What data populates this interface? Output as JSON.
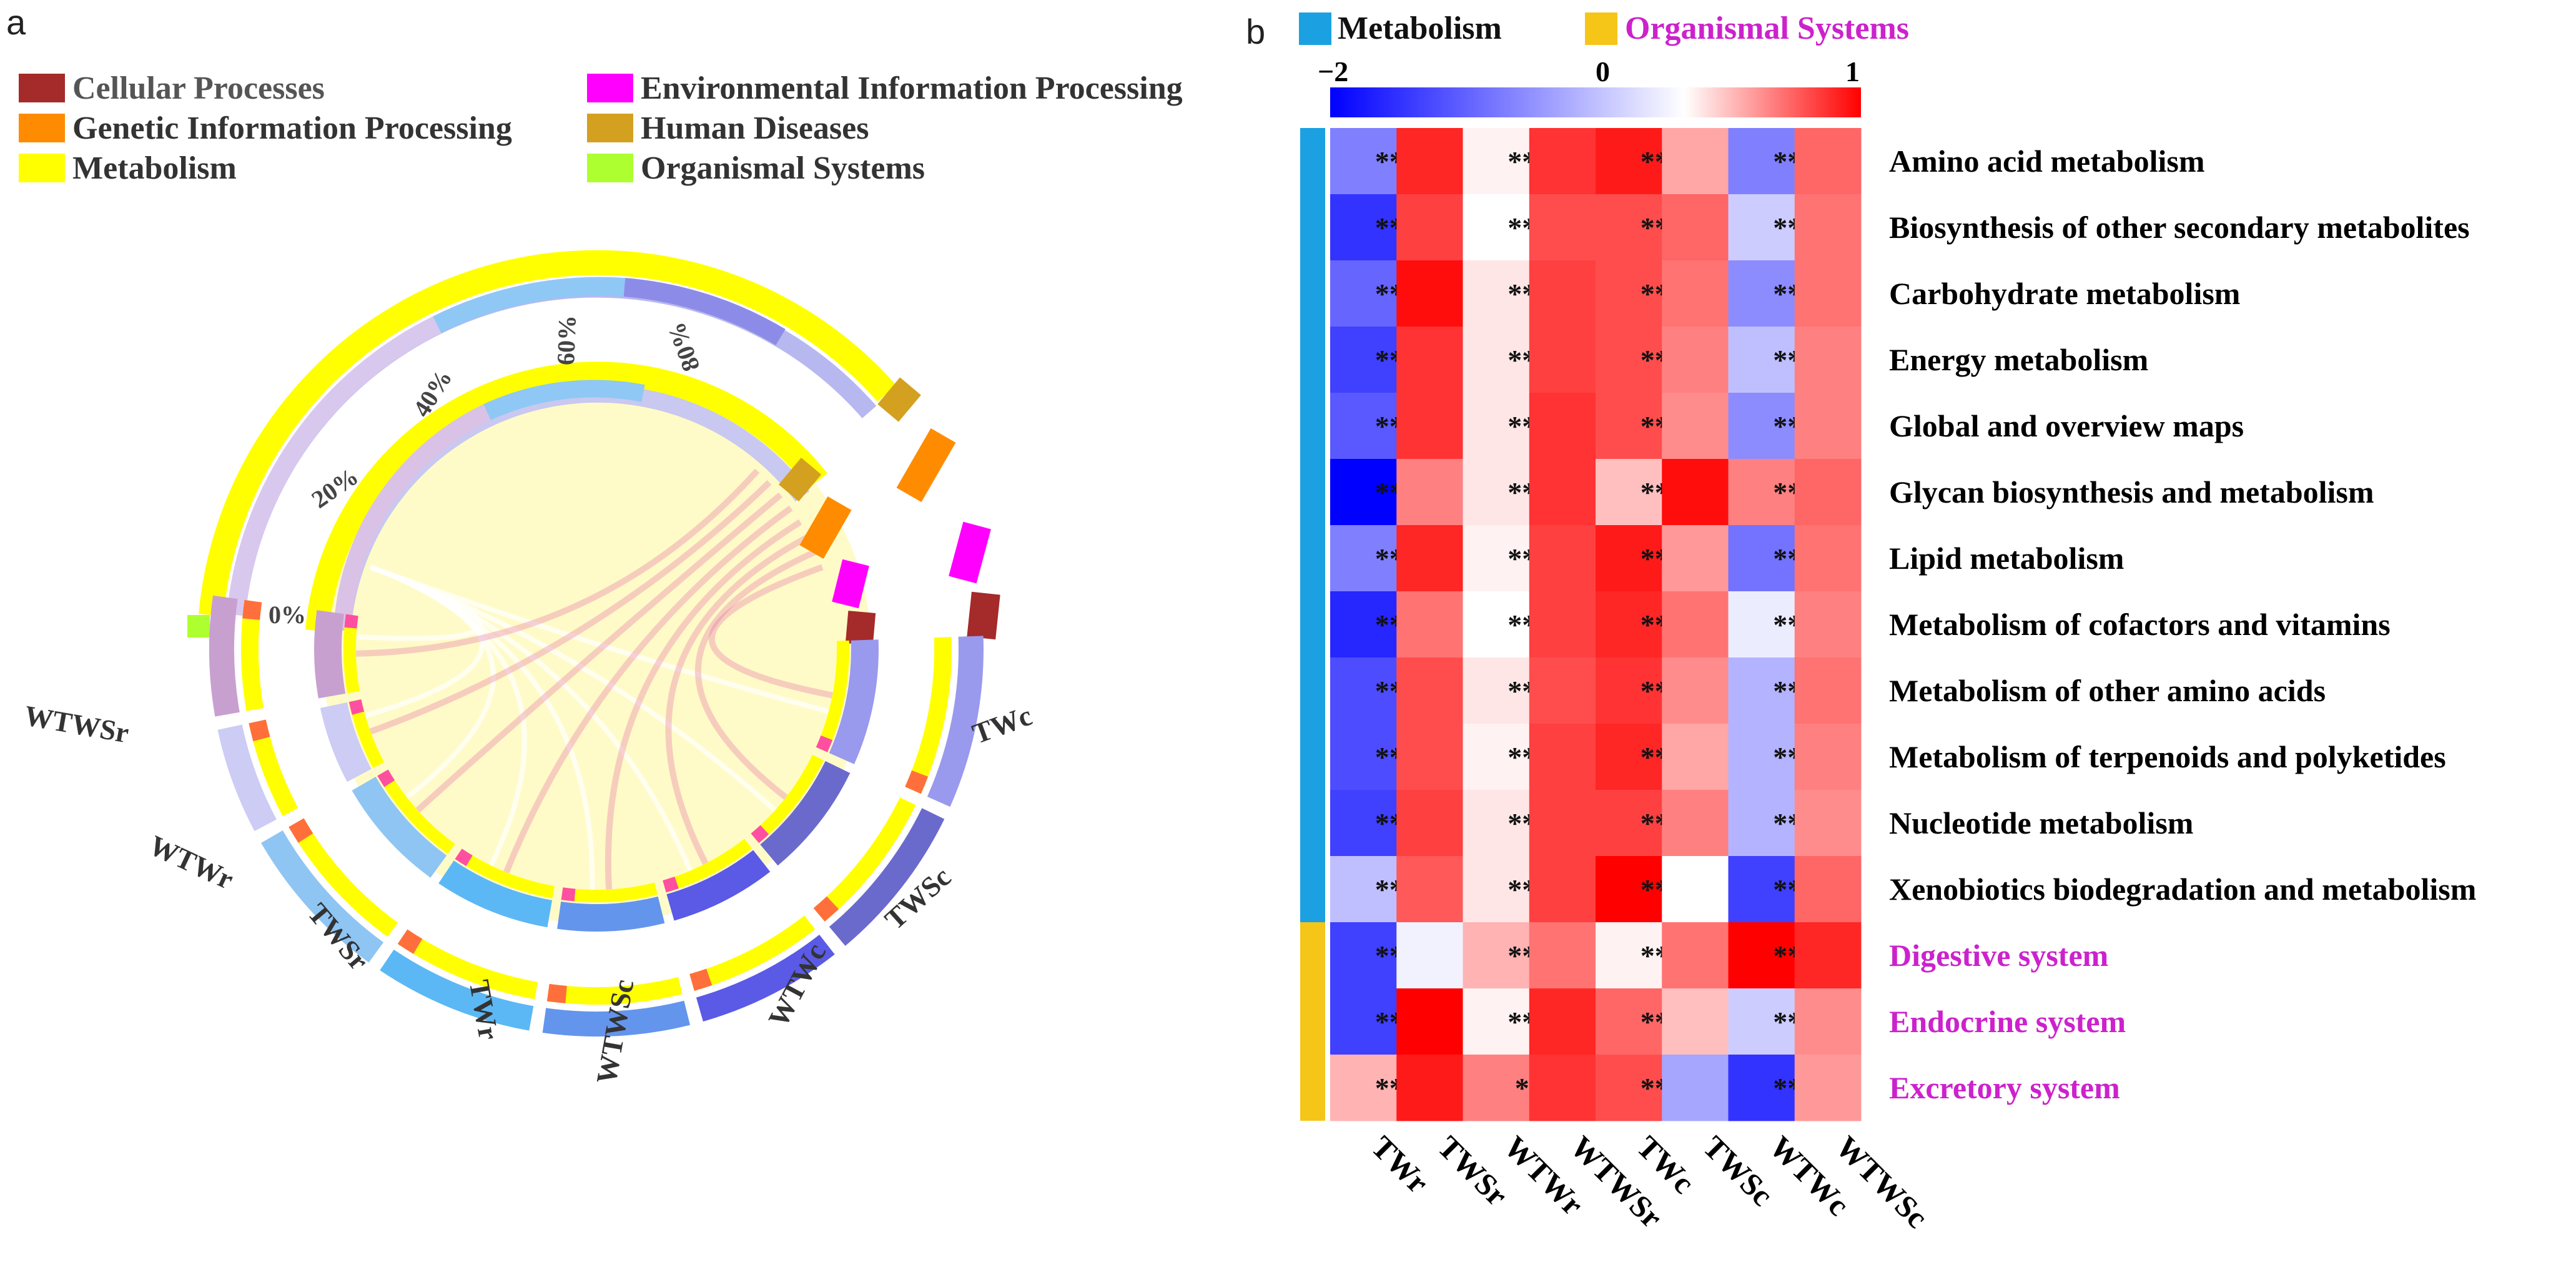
{
  "panel_a": {
    "label": "a",
    "legend": [
      {
        "label": "Cellular Processes",
        "color": "#a52a2a"
      },
      {
        "label": "Environmental Information Processing",
        "color": "#ff00ff"
      },
      {
        "label": "Genetic Information Processing",
        "color": "#ff8c00"
      },
      {
        "label": "Human Diseases",
        "color": "#d4a020"
      },
      {
        "label": "Metabolism",
        "color": "#ffff00"
      },
      {
        "label": "Organismal Systems",
        "color": "#adff2f"
      }
    ],
    "percent_labels": [
      "0%",
      "20%",
      "40%",
      "60%",
      "80%"
    ],
    "groups": [
      {
        "label": "TWc",
        "color": "#9999ee"
      },
      {
        "label": "TWSc",
        "color": "#6a6acd"
      },
      {
        "label": "WTWc",
        "color": "#5a5ae6"
      },
      {
        "label": "WTWSc",
        "color": "#6495ed"
      },
      {
        "label": "TWr",
        "color": "#5bb8f5"
      },
      {
        "label": "TWSr",
        "color": "#8ec5f3"
      },
      {
        "label": "WTWr",
        "color": "#ccccf5"
      },
      {
        "label": "WTWSr",
        "color": "#c8a0d0"
      }
    ]
  },
  "panel_b": {
    "label": "b",
    "legend": [
      {
        "label": "Metabolism",
        "color": "#1ba1e2"
      },
      {
        "label": "Organismal Systems",
        "color": "#f5c518",
        "text_color": "#cc22cc"
      }
    ],
    "colorbar": {
      "min_label": "−2",
      "mid_label": "0",
      "max_label": "1"
    }
  },
  "chart_data": {
    "type": "heatmap",
    "title": "",
    "columns": [
      "TWr",
      "TWSr",
      "WTWr",
      "WTWSr",
      "TWc",
      "TWSc",
      "WTWc",
      "WTWSc"
    ],
    "rows": [
      "Amino acid metabolism",
      "Biosynthesis of other secondary metabolites",
      "Carbohydrate metabolism",
      "Energy metabolism",
      "Global and overview maps",
      "Glycan biosynthesis and metabolism",
      "Lipid metabolism",
      "Metabolism of cofactors and vitamins",
      "Metabolism of other amino acids",
      "Metabolism of terpenoids and polyketides",
      "Nucleotide metabolism",
      "Xenobiotics biodegradation and metabolism",
      "Digestive system",
      "Endocrine system",
      "Excretory system"
    ],
    "row_groups": [
      "Metabolism",
      "Metabolism",
      "Metabolism",
      "Metabolism",
      "Metabolism",
      "Metabolism",
      "Metabolism",
      "Metabolism",
      "Metabolism",
      "Metabolism",
      "Metabolism",
      "Metabolism",
      "Organismal Systems",
      "Organismal Systems",
      "Organismal Systems"
    ],
    "values": [
      [
        -1.0,
        0.85,
        0.05,
        0.8,
        0.9,
        0.35,
        -1.0,
        0.6
      ],
      [
        -1.6,
        0.75,
        0.0,
        0.7,
        0.7,
        0.6,
        -0.4,
        0.55
      ],
      [
        -1.2,
        0.95,
        0.1,
        0.75,
        0.7,
        0.55,
        -0.9,
        0.55
      ],
      [
        -1.5,
        0.8,
        0.1,
        0.75,
        0.7,
        0.5,
        -0.5,
        0.5
      ],
      [
        -1.3,
        0.8,
        0.1,
        0.8,
        0.7,
        0.45,
        -0.9,
        0.5
      ],
      [
        -2.0,
        0.5,
        0.1,
        0.8,
        0.25,
        0.95,
        0.5,
        0.6
      ],
      [
        -1.0,
        0.85,
        0.05,
        0.75,
        0.9,
        0.4,
        -1.1,
        0.55
      ],
      [
        -1.7,
        0.55,
        0.0,
        0.75,
        0.85,
        0.55,
        -0.15,
        0.5
      ],
      [
        -1.4,
        0.7,
        0.1,
        0.7,
        0.8,
        0.45,
        -0.6,
        0.55
      ],
      [
        -1.4,
        0.7,
        0.05,
        0.75,
        0.85,
        0.35,
        -0.6,
        0.5
      ],
      [
        -1.5,
        0.75,
        0.1,
        0.75,
        0.75,
        0.5,
        -0.6,
        0.45
      ],
      [
        -0.5,
        0.65,
        0.1,
        0.75,
        1.0,
        0.0,
        -1.5,
        0.6
      ],
      [
        -1.5,
        -0.1,
        0.3,
        0.55,
        0.05,
        0.55,
        1.0,
        0.85
      ],
      [
        -1.5,
        1.0,
        0.05,
        0.85,
        0.6,
        0.25,
        -0.4,
        0.45
      ],
      [
        0.3,
        0.9,
        0.5,
        0.8,
        0.7,
        -0.7,
        -1.6,
        0.4
      ]
    ],
    "significance": [
      [
        "***",
        "",
        "***",
        "",
        "***",
        "",
        "***",
        ""
      ],
      [
        "***",
        "",
        "***",
        "",
        "***",
        "",
        "***",
        ""
      ],
      [
        "***",
        "",
        "***",
        "",
        "***",
        "",
        "***",
        ""
      ],
      [
        "***",
        "",
        "***",
        "",
        "***",
        "",
        "***",
        ""
      ],
      [
        "***",
        "",
        "***",
        "",
        "***",
        "",
        "***",
        ""
      ],
      [
        "***",
        "",
        "***",
        "",
        "***",
        "",
        "***",
        ""
      ],
      [
        "***",
        "",
        "***",
        "",
        "***",
        "",
        "***",
        ""
      ],
      [
        "***",
        "",
        "***",
        "",
        "***",
        "",
        "***",
        ""
      ],
      [
        "***",
        "",
        "***",
        "",
        "***",
        "",
        "***",
        ""
      ],
      [
        "***",
        "",
        "***",
        "",
        "***",
        "",
        "***",
        ""
      ],
      [
        "***",
        "",
        "***",
        "",
        "***",
        "",
        "***",
        ""
      ],
      [
        "***",
        "",
        "***",
        "",
        "***",
        "",
        "***",
        ""
      ],
      [
        "***",
        "",
        "***",
        "",
        "***",
        "",
        "***",
        ""
      ],
      [
        "***",
        "",
        "***",
        "",
        "***",
        "",
        "***",
        ""
      ],
      [
        "***",
        "",
        "**",
        "",
        "***",
        "",
        "***",
        ""
      ]
    ],
    "color_scale": {
      "min": -2,
      "mid": 0,
      "max": 1,
      "low_color": "#0000ff",
      "mid_color": "#ffffff",
      "high_color": "#ff0000"
    },
    "row_label_colors": {
      "Metabolism": "#000000",
      "Organismal Systems": "#cc22cc"
    }
  }
}
